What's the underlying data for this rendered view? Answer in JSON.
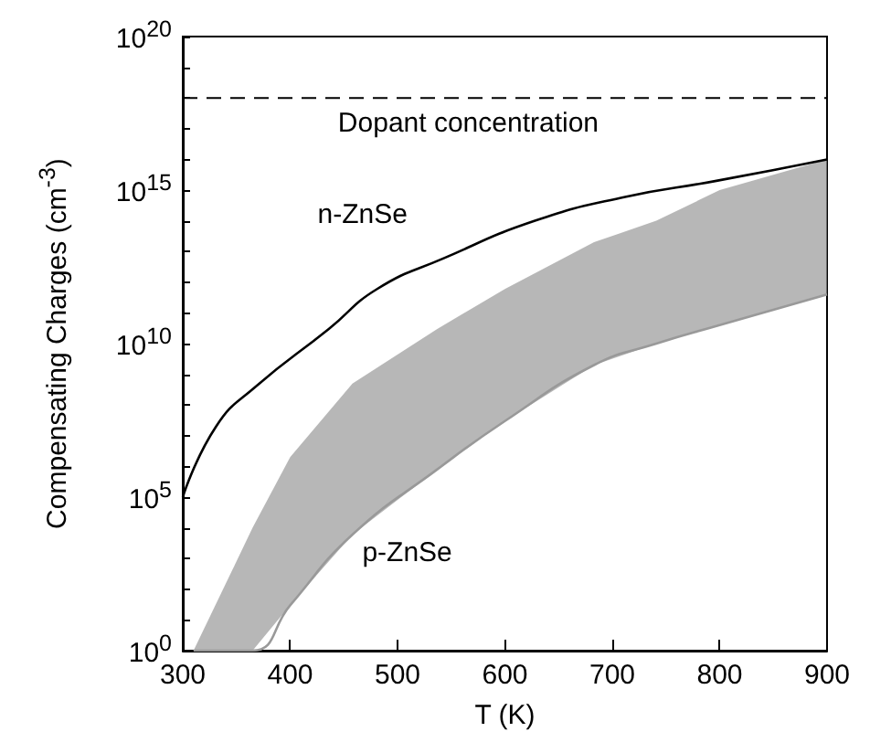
{
  "chart_data": {
    "type": "line",
    "xlabel": "T (K)",
    "ylabel": "Compensating Charges (cm$^{-3}$)",
    "log": "y",
    "grid": false,
    "legend": false,
    "marker": "none",
    "line_style": "solid",
    "xlim": [
      300,
      900
    ],
    "xticks": [
      300,
      400,
      500,
      600,
      700,
      800,
      900
    ],
    "ylim": [
      1,
      1e+20
    ],
    "yticks": [
      {
        "value": 1,
        "label": "10$^{0}$"
      },
      {
        "value": 10,
        "label": null
      },
      {
        "value": 100,
        "label": null
      },
      {
        "value": 1000,
        "label": null
      },
      {
        "value": 10000,
        "label": null
      },
      {
        "value": 100000,
        "label": "10$^{5}$"
      },
      {
        "value": 1000000.0,
        "label": null
      },
      {
        "value": 10000000.0,
        "label": null
      },
      {
        "value": 100000000.0,
        "label": null
      },
      {
        "value": 1000000000.0,
        "label": null
      },
      {
        "value": 10000000000.0,
        "label": "10$^{10}$"
      },
      {
        "value": 100000000000.0,
        "label": null
      },
      {
        "value": 1000000000000.0,
        "label": null
      },
      {
        "value": 10000000000000.0,
        "label": null
      },
      {
        "value": 100000000000000.0,
        "label": null
      },
      {
        "value": 1000000000000000.0,
        "label": "10$^{15}$"
      },
      {
        "value": 1e+16,
        "label": null
      },
      {
        "value": 1e+17,
        "label": null
      },
      {
        "value": 1e+18,
        "label": null
      },
      {
        "value": 1e+19,
        "label": null
      },
      {
        "value": 1e+20,
        "label": "10$^{20}$"
      }
    ],
    "series": [
      {
        "name": "n-ZnSe",
        "color": "#000000",
        "x": [
          300,
          331,
          368,
          436,
          481,
          543,
          628,
          712,
          797,
          900
        ],
        "values": [
          100000.0,
          20000000.0,
          400000000.0,
          30000000000.0,
          600000000000.0,
          6000000000000.0,
          100000000000000.0,
          600000000000000.0,
          2000000000000000.0,
          1e+16
        ]
      },
      {
        "name": "p-ZnSe",
        "type": "line",
        "color": "#999999",
        "x": [
          310,
          365,
          400,
          458,
          537,
          600,
          683,
          741,
          800,
          900
        ],
        "values": [
          1,
          1,
          30,
          6000,
          800000.0,
          30000000.0,
          2000000000.0,
          10000000000.0,
          40000000000.0,
          400000000000.0
        ],
        "lower": [
          1,
          1,
          30,
          6000,
          800000.0,
          30000000.0,
          2000000000.0,
          10000000000.0,
          40000000000.0,
          400000000000.0
        ],
        "upper": [
          1,
          10000.0,
          2000000.0,
          500000000.0,
          30000000000.0,
          600000000000.0,
          20000000000000.0,
          100000000000000.0,
          1000000000000000.0,
          1e+16
        ]
      }
    ],
    "ref_lines": [
      {
        "axis": "y",
        "value": 1e+18,
        "label": "Dopant concentration",
        "line_style": "dashed",
        "color": "#000000"
      }
    ]
  }
}
